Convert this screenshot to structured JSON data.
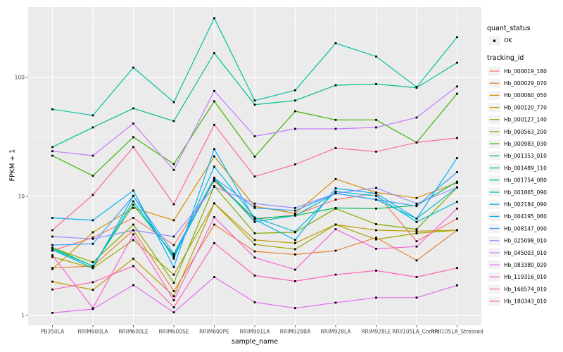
{
  "colors": {
    "panel_bg": "#EBEBEB",
    "grid": "#FFFFFF",
    "tick_text": "#4D4D4D",
    "point": "#000000",
    "legend_key_bg": "#F2F2F2"
  },
  "legend": {
    "quant_status_title": "quant_status",
    "quant_status_items": [
      {
        "label": "OK",
        "marker": "black-square-point"
      }
    ],
    "tracking_id_title": "tracking_id"
  },
  "chart_data": {
    "type": "line",
    "title": "",
    "xlabel": "sample_name",
    "ylabel": "FPKM + 1",
    "y_scale": "log10",
    "y_ticks": [
      1,
      10,
      100
    ],
    "y_tick_labels": [
      "1",
      "10",
      "100"
    ],
    "y_minor_ticks": [
      3.162,
      31.62,
      316.2
    ],
    "ylim": [
      1,
      380
    ],
    "grid": "on",
    "legend_position": "right",
    "point_status": "OK",
    "categories": [
      "PB350LA",
      "RRIM600LA",
      "RRIM600LE",
      "RRIM600SE",
      "RRIM600PE",
      "RRIM901LA",
      "RRIM928BA",
      "RRIM928LA",
      "RRIM928LE",
      "RRII105LA_Control",
      "RRII105LA_Stressed"
    ],
    "series": [
      {
        "name": "Hb_000019_180",
        "color": "#F8766D",
        "values": [
          3.5,
          4.5,
          6.6,
          3.9,
          13.5,
          6.4,
          7.0,
          9.4,
          10.6,
          4.2,
          6.5
        ]
      },
      {
        "name": "Hb_000029_070",
        "color": "#EA8331",
        "values": [
          2.5,
          2.6,
          5.2,
          1.6,
          5.8,
          3.45,
          3.25,
          3.5,
          4.5,
          2.9,
          5.2
        ]
      },
      {
        "name": "Hb_000060_050",
        "color": "#D89000",
        "values": [
          2.45,
          5.0,
          8.0,
          6.3,
          21.7,
          8.25,
          7.2,
          14.0,
          10.8,
          9.7,
          13.0
        ]
      },
      {
        "name": "Hb_000120_770",
        "color": "#C09B00",
        "values": [
          1.92,
          1.64,
          3.0,
          1.45,
          8.75,
          4.3,
          4.05,
          5.8,
          5.2,
          5.1,
          5.2
        ]
      },
      {
        "name": "Hb_000127_140",
        "color": "#A3A500",
        "values": [
          3.1,
          2.5,
          4.3,
          2.2,
          8.75,
          3.95,
          3.6,
          5.8,
          4.35,
          4.9,
          5.2
        ]
      },
      {
        "name": "Hb_000563_200",
        "color": "#7CAE00",
        "values": [
          3.7,
          2.8,
          5.8,
          1.88,
          12.2,
          4.9,
          5.0,
          7.9,
          5.85,
          5.3,
          11.9
        ]
      },
      {
        "name": "Hb_000983_030",
        "color": "#39B600",
        "values": [
          22,
          14.9,
          31.5,
          18.7,
          63,
          21.6,
          52,
          44,
          44,
          28.4,
          73
        ]
      },
      {
        "name": "Hb_001353_010",
        "color": "#00BB4E",
        "values": [
          3.7,
          2.6,
          8.5,
          3.2,
          13.8,
          6.5,
          6.9,
          8.0,
          7.9,
          8.4,
          13.3
        ]
      },
      {
        "name": "Hb_001489_110",
        "color": "#00C087",
        "values": [
          26,
          38,
          55,
          43,
          160,
          59,
          64,
          86,
          88,
          82,
          133
        ]
      },
      {
        "name": "Hb_001754_080",
        "color": "#00C1A3",
        "values": [
          54,
          48,
          121,
          62,
          315,
          64,
          78,
          194,
          150,
          83,
          218
        ]
      },
      {
        "name": "Hb_001865_090",
        "color": "#00BFC4",
        "values": [
          3.6,
          2.6,
          9.1,
          3.1,
          14.3,
          6.1,
          6.9,
          10.6,
          9.4,
          6.5,
          11.9
        ]
      },
      {
        "name": "Hb_002184_090",
        "color": "#00BAE0",
        "values": [
          3.55,
          2.5,
          10.1,
          3.0,
          17.8,
          6.65,
          5.05,
          11.0,
          10.1,
          6.1,
          9.0
        ]
      },
      {
        "name": "Hb_004195_080",
        "color": "#00B0F6",
        "values": [
          6.6,
          6.3,
          11.2,
          2.55,
          25,
          6.4,
          4.3,
          11.7,
          10.6,
          6.5,
          21
        ]
      },
      {
        "name": "Hb_008147_090",
        "color": "#35A2FF",
        "values": [
          3.9,
          4.0,
          10.1,
          3.3,
          14.3,
          8.0,
          7.6,
          10.6,
          9.4,
          8.3,
          16
        ]
      },
      {
        "name": "Hb_025098_010",
        "color": "#9590FF",
        "values": [
          4.6,
          4.4,
          5.2,
          4.6,
          12.0,
          8.7,
          8.0,
          10.6,
          11.8,
          8.7,
          11.9
        ]
      },
      {
        "name": "Hb_045003_010",
        "color": "#C77CFF",
        "values": [
          24,
          22,
          41,
          16.7,
          77,
          32,
          37,
          37,
          38,
          46,
          84
        ]
      },
      {
        "name": "Hb_083380_020",
        "color": "#E76BF3",
        "values": [
          1.05,
          1.13,
          1.8,
          1.06,
          2.1,
          1.29,
          1.15,
          1.28,
          1.41,
          1.41,
          1.79
        ]
      },
      {
        "name": "Hb_119316_010",
        "color": "#FA62DB",
        "values": [
          3.2,
          1.15,
          4.8,
          1.34,
          6.7,
          3.06,
          2.42,
          5.3,
          3.63,
          3.79,
          7.9
        ]
      },
      {
        "name": "Hb_166574_010",
        "color": "#FF62BC",
        "values": [
          1.65,
          1.9,
          2.6,
          1.17,
          4.05,
          2.16,
          1.94,
          2.2,
          2.38,
          2.1,
          2.5
        ]
      },
      {
        "name": "Hb_180343_010",
        "color": "#FF6A98",
        "values": [
          5.2,
          10.3,
          26,
          8.6,
          40,
          14.7,
          18.6,
          25.5,
          23.8,
          28.4,
          31
        ]
      }
    ]
  }
}
